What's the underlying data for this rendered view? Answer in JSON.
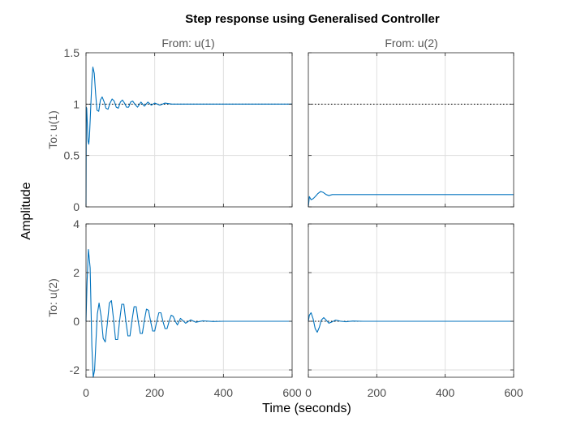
{
  "chart_data": {
    "type": "line",
    "title": "Step response using Generalised Controller",
    "xlabel": "Time (seconds)",
    "ylabel": "Amplitude",
    "column_labels": [
      "From: u(1)",
      "From: u(2)"
    ],
    "row_labels": [
      "To: u(1)",
      "To: u(2)"
    ],
    "xlim": [
      0,
      600
    ],
    "xticks": [
      0,
      200,
      400,
      600
    ],
    "grid": true,
    "line_color": "#0072BD",
    "reference_color": "#000000",
    "rows": [
      {
        "ylim": [
          0,
          1.5
        ],
        "yticks": [
          0,
          0.5,
          1,
          1.5
        ],
        "reference": 1
      },
      {
        "ylim": [
          -2.3,
          4
        ],
        "yticks": [
          -2,
          0,
          2,
          4
        ],
        "reference": 0
      }
    ],
    "panels": [
      {
        "from": "u(1)",
        "to": "u(1)",
        "steady_state": 1.0,
        "x": [
          0,
          1,
          2,
          4,
          6,
          8,
          10,
          13,
          17,
          20,
          24,
          28,
          32,
          37,
          42,
          47,
          53,
          58,
          64,
          70,
          76,
          82,
          88,
          94,
          100,
          106,
          112,
          118,
          124,
          130,
          136,
          142,
          150,
          160,
          170,
          180,
          190,
          200,
          215,
          230,
          250,
          280,
          320,
          360,
          420,
          480,
          540,
          600
        ],
        "y": [
          0,
          0.97,
          0.96,
          0.79,
          0.64,
          0.61,
          0.68,
          0.91,
          1.22,
          1.36,
          1.3,
          1.1,
          0.94,
          0.93,
          1.04,
          1.07,
          1.02,
          0.96,
          0.95,
          1.01,
          1.05,
          1.03,
          0.97,
          0.96,
          1.02,
          1.04,
          1.01,
          0.97,
          0.97,
          1.02,
          1.03,
          1.0,
          0.97,
          1.02,
          0.98,
          1.02,
          0.99,
          1.01,
          0.99,
          1.01,
          1.0,
          1.0,
          1.0,
          1.0,
          1.0,
          1.0,
          1.0,
          1.0
        ]
      },
      {
        "from": "u(2)",
        "to": "u(1)",
        "steady_state": 0.12,
        "x": [
          0,
          3,
          8,
          14,
          20,
          28,
          36,
          44,
          52,
          60,
          70,
          80,
          95,
          110,
          140,
          200,
          300,
          400,
          500,
          600
        ],
        "y": [
          0,
          0.1,
          0.07,
          0.08,
          0.1,
          0.13,
          0.15,
          0.14,
          0.12,
          0.11,
          0.12,
          0.12,
          0.12,
          0.12,
          0.12,
          0.12,
          0.12,
          0.12,
          0.12,
          0.12
        ]
      },
      {
        "from": "u(1)",
        "to": "u(2)",
        "steady_state": 0,
        "x": [
          0,
          3,
          7,
          12,
          17,
          21,
          25,
          29,
          33,
          38,
          44,
          50,
          56,
          62,
          68,
          74,
          80,
          86,
          92,
          98,
          104,
          110,
          116,
          122,
          128,
          134,
          140,
          146,
          152,
          158,
          164,
          170,
          176,
          182,
          188,
          194,
          200,
          206,
          212,
          218,
          224,
          230,
          236,
          242,
          248,
          254,
          260,
          266,
          275,
          290,
          305,
          320,
          340,
          370,
          400,
          450,
          500,
          550,
          600
        ],
        "y": [
          0,
          1.6,
          2.95,
          2.2,
          -1.0,
          -2.3,
          -2.0,
          -0.8,
          0.3,
          0.75,
          0.2,
          -0.7,
          -0.85,
          -0.1,
          0.75,
          0.85,
          0.1,
          -0.75,
          -0.75,
          0.05,
          0.7,
          0.7,
          0.0,
          -0.6,
          -0.6,
          0.05,
          0.6,
          0.6,
          0.0,
          -0.5,
          -0.5,
          0.05,
          0.5,
          0.45,
          0.0,
          -0.4,
          -0.4,
          0.0,
          0.35,
          0.35,
          0.0,
          -0.3,
          -0.3,
          0.0,
          0.25,
          0.2,
          0.0,
          -0.15,
          0.12,
          -0.08,
          0.06,
          -0.04,
          0.02,
          -0.01,
          0.0,
          0.0,
          0.0,
          0.0,
          0.0
        ]
      },
      {
        "from": "u(2)",
        "to": "u(2)",
        "steady_state": 0,
        "x": [
          0,
          3,
          8,
          14,
          20,
          26,
          32,
          38,
          45,
          52,
          60,
          70,
          80,
          95,
          110,
          130,
          160,
          200,
          300,
          400,
          500,
          600
        ],
        "y": [
          0,
          0.25,
          0.35,
          0.1,
          -0.3,
          -0.45,
          -0.25,
          0.05,
          0.15,
          0.05,
          -0.08,
          -0.02,
          0.05,
          0.0,
          -0.02,
          0.01,
          0.0,
          0.0,
          0.0,
          0.0,
          0.0,
          0.0
        ]
      }
    ]
  }
}
